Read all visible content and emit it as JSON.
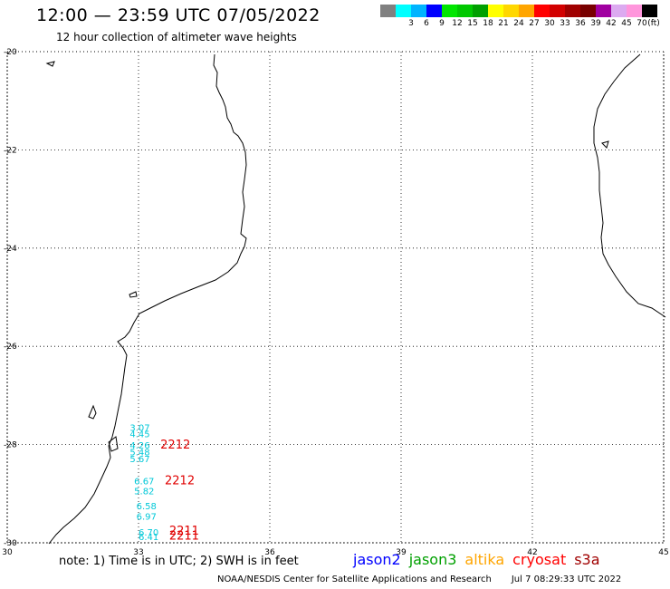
{
  "header": {
    "title": "12:00 — 23:59 UTC 07/05/2022",
    "subtitle": "12 hour collection of altimeter wave heights"
  },
  "legend": {
    "unit": "(ft)",
    "bins": [
      {
        "label": "",
        "color": "#808080"
      },
      {
        "label": "3",
        "color": "#00ffff"
      },
      {
        "label": "6",
        "color": "#00b4ff"
      },
      {
        "label": "9",
        "color": "#0000ff"
      },
      {
        "label": "12",
        "color": "#00e600"
      },
      {
        "label": "15",
        "color": "#00c800"
      },
      {
        "label": "18",
        "color": "#00a000"
      },
      {
        "label": "21",
        "color": "#ffff00"
      },
      {
        "label": "24",
        "color": "#ffd700"
      },
      {
        "label": "27",
        "color": "#ffa500"
      },
      {
        "label": "30",
        "color": "#ff0000"
      },
      {
        "label": "33",
        "color": "#d20000"
      },
      {
        "label": "36",
        "color": "#a00000"
      },
      {
        "label": "39",
        "color": "#780000"
      },
      {
        "label": "42",
        "color": "#a000a0"
      },
      {
        "label": "45",
        "color": "#dcaaf0"
      },
      {
        "label": "70",
        "color": "#ff96dc"
      },
      {
        "label": "",
        "color": "#000000"
      }
    ]
  },
  "map": {
    "lon_range": [
      30,
      45
    ],
    "lat_range": [
      -30,
      -20
    ],
    "x_ticks": [
      "30",
      "33",
      "36",
      "39",
      "42",
      "45"
    ],
    "y_ticks": [
      "-20",
      "-22",
      "-24",
      "-26",
      "-28",
      "-30"
    ],
    "grid": "dotted",
    "observations": [
      {
        "text": "3.07",
        "lon": 32.8,
        "lat": -27.65,
        "color": "#00c8d8"
      },
      {
        "text": "4.45",
        "lon": 32.8,
        "lat": -27.78,
        "color": "#00c8d8"
      },
      {
        "text": "4.26",
        "lon": 32.8,
        "lat": -28.01,
        "color": "#00c8d8"
      },
      {
        "text": "5.48",
        "lon": 32.8,
        "lat": -28.15,
        "color": "#00c8d8"
      },
      {
        "text": "5.67",
        "lon": 32.8,
        "lat": -28.28,
        "color": "#00c8d8"
      },
      {
        "text": "2212",
        "lon": 33.5,
        "lat": -28.01,
        "color": "#e00000"
      },
      {
        "text": "6.67",
        "lon": 32.9,
        "lat": -28.74,
        "color": "#00c8d8"
      },
      {
        "text": "5.82",
        "lon": 32.9,
        "lat": -28.94,
        "color": "#00c8d8"
      },
      {
        "text": "2212",
        "lon": 33.6,
        "lat": -28.74,
        "color": "#e00000"
      },
      {
        "text": "6.58",
        "lon": 32.95,
        "lat": -29.24,
        "color": "#00c8d8"
      },
      {
        "text": "6.97",
        "lon": 32.95,
        "lat": -29.46,
        "color": "#00c8d8"
      },
      {
        "text": "6.70",
        "lon": 33.0,
        "lat": -29.78,
        "color": "#00c8d8"
      },
      {
        "text": "6.41",
        "lon": 33.0,
        "lat": -29.87,
        "color": "#00c8d8"
      },
      {
        "text": "2211",
        "lon": 33.7,
        "lat": -29.76,
        "color": "#e00000"
      },
      {
        "text": "2211",
        "lon": 33.7,
        "lat": -29.86,
        "color": "#e00000"
      }
    ]
  },
  "footer": {
    "note": "note: 1) Time is in UTC; 2) SWH is in feet",
    "satellites": [
      {
        "name": "jason2",
        "color": "#0000ff"
      },
      {
        "name": "jason3",
        "color": "#00a000"
      },
      {
        "name": "altika",
        "color": "#ffa500"
      },
      {
        "name": "cryosat",
        "color": "#ff0000"
      },
      {
        "name": "s3a",
        "color": "#a00000"
      }
    ],
    "credit": "NOAA/NESDIS Center for Satellite Applications and Research",
    "timestamp": "Jul  7 08:29:33 UTC 2022"
  }
}
